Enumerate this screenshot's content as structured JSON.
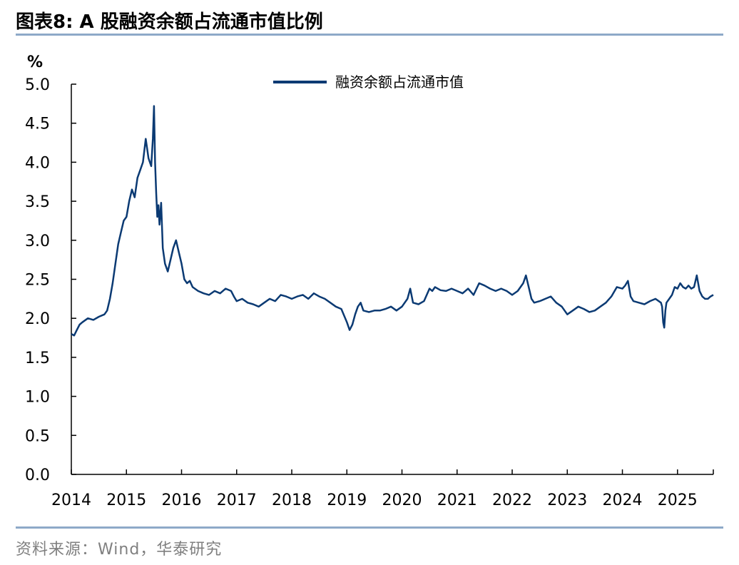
{
  "header": {
    "title": "图表8:   A 股融资余额占流通市值比例"
  },
  "footer": {
    "source": "资料来源：Wind，华泰研究"
  },
  "colors": {
    "series": "#0b3a73",
    "axis": "#000000",
    "rule": "#8ea9c8",
    "source_text": "#7f7f7f"
  },
  "chart_data": {
    "type": "line",
    "title": "",
    "ylabel": "%",
    "xlabel": "",
    "ylim": [
      0,
      5.0
    ],
    "yticks": [
      "0.0",
      "0.5",
      "1.0",
      "1.5",
      "2.0",
      "2.5",
      "3.0",
      "3.5",
      "4.0",
      "4.5",
      "5.0"
    ],
    "xlim": [
      2014.0,
      2025.65
    ],
    "xticks": [
      "2014",
      "2015",
      "2016",
      "2017",
      "2018",
      "2019",
      "2020",
      "2021",
      "2022",
      "2023",
      "2024",
      "2025"
    ],
    "grid": false,
    "legend": "top-center",
    "series": [
      {
        "name": "融资余额占流通市值",
        "x": [
          2014.0,
          2014.05,
          2014.1,
          2014.15,
          2014.2,
          2014.3,
          2014.4,
          2014.5,
          2014.6,
          2014.65,
          2014.7,
          2014.75,
          2014.8,
          2014.85,
          2014.9,
          2014.95,
          2015.0,
          2015.05,
          2015.1,
          2015.15,
          2015.2,
          2015.25,
          2015.3,
          2015.35,
          2015.4,
          2015.45,
          2015.48,
          2015.5,
          2015.52,
          2015.54,
          2015.56,
          2015.58,
          2015.6,
          2015.63,
          2015.66,
          2015.7,
          2015.75,
          2015.8,
          2015.85,
          2015.9,
          2015.95,
          2016.0,
          2016.05,
          2016.1,
          2016.15,
          2016.2,
          2016.3,
          2016.4,
          2016.5,
          2016.6,
          2016.7,
          2016.8,
          2016.9,
          2016.95,
          2017.0,
          2017.1,
          2017.2,
          2017.3,
          2017.4,
          2017.5,
          2017.6,
          2017.7,
          2017.8,
          2017.9,
          2018.0,
          2018.1,
          2018.2,
          2018.3,
          2018.4,
          2018.5,
          2018.6,
          2018.7,
          2018.8,
          2018.9,
          2019.0,
          2019.05,
          2019.1,
          2019.15,
          2019.2,
          2019.25,
          2019.3,
          2019.4,
          2019.5,
          2019.6,
          2019.7,
          2019.8,
          2019.9,
          2020.0,
          2020.1,
          2020.15,
          2020.2,
          2020.3,
          2020.4,
          2020.5,
          2020.55,
          2020.6,
          2020.7,
          2020.8,
          2020.9,
          2021.0,
          2021.1,
          2021.2,
          2021.3,
          2021.4,
          2021.5,
          2021.6,
          2021.7,
          2021.8,
          2021.9,
          2022.0,
          2022.1,
          2022.2,
          2022.25,
          2022.3,
          2022.35,
          2022.4,
          2022.5,
          2022.6,
          2022.7,
          2022.8,
          2022.9,
          2023.0,
          2023.1,
          2023.2,
          2023.3,
          2023.4,
          2023.5,
          2023.6,
          2023.7,
          2023.8,
          2023.9,
          2024.0,
          2024.05,
          2024.1,
          2024.15,
          2024.2,
          2024.3,
          2024.4,
          2024.5,
          2024.6,
          2024.7,
          2024.72,
          2024.74,
          2024.76,
          2024.78,
          2024.8,
          2024.85,
          2024.9,
          2024.95,
          2025.0,
          2025.05,
          2025.1,
          2025.15,
          2025.2,
          2025.25,
          2025.3,
          2025.35,
          2025.4,
          2025.45,
          2025.5,
          2025.55,
          2025.6,
          2025.65
        ],
        "y": [
          1.8,
          1.78,
          1.85,
          1.92,
          1.95,
          2.0,
          1.98,
          2.02,
          2.05,
          2.1,
          2.25,
          2.45,
          2.7,
          2.95,
          3.1,
          3.25,
          3.3,
          3.5,
          3.65,
          3.55,
          3.8,
          3.9,
          4.0,
          4.3,
          4.05,
          3.95,
          4.3,
          4.72,
          4.0,
          3.6,
          3.3,
          3.45,
          3.2,
          3.48,
          2.9,
          2.7,
          2.6,
          2.75,
          2.9,
          3.0,
          2.85,
          2.7,
          2.5,
          2.45,
          2.48,
          2.4,
          2.35,
          2.32,
          2.3,
          2.35,
          2.32,
          2.38,
          2.35,
          2.28,
          2.22,
          2.25,
          2.2,
          2.18,
          2.15,
          2.2,
          2.25,
          2.22,
          2.3,
          2.28,
          2.25,
          2.28,
          2.3,
          2.25,
          2.32,
          2.28,
          2.25,
          2.2,
          2.15,
          2.12,
          1.95,
          1.85,
          1.92,
          2.05,
          2.15,
          2.2,
          2.1,
          2.08,
          2.1,
          2.1,
          2.12,
          2.15,
          2.1,
          2.15,
          2.25,
          2.38,
          2.2,
          2.18,
          2.22,
          2.38,
          2.35,
          2.4,
          2.36,
          2.35,
          2.38,
          2.35,
          2.32,
          2.38,
          2.3,
          2.45,
          2.42,
          2.38,
          2.35,
          2.38,
          2.35,
          2.3,
          2.35,
          2.45,
          2.55,
          2.4,
          2.25,
          2.2,
          2.22,
          2.25,
          2.28,
          2.2,
          2.15,
          2.05,
          2.1,
          2.15,
          2.12,
          2.08,
          2.1,
          2.15,
          2.2,
          2.28,
          2.4,
          2.38,
          2.42,
          2.48,
          2.28,
          2.22,
          2.2,
          2.18,
          2.22,
          2.25,
          2.2,
          2.15,
          1.95,
          1.88,
          2.1,
          2.2,
          2.25,
          2.3,
          2.4,
          2.38,
          2.45,
          2.4,
          2.38,
          2.42,
          2.38,
          2.4,
          2.55,
          2.35,
          2.28,
          2.25,
          2.25,
          2.28,
          2.3
        ]
      }
    ]
  }
}
